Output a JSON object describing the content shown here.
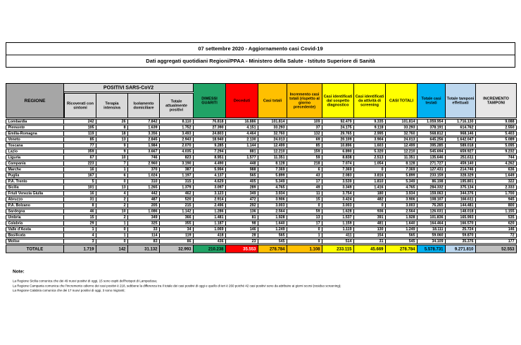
{
  "title": {
    "line1": "07 settembre 2020 - Aggiornamento casi Covid-19",
    "line2": "Dati aggregati quotidiani Regioni/PPAA - Ministero della Salute - Istituto Superiore di Sanità"
  },
  "colors": {
    "green": "#21A366",
    "red": "#FF0000",
    "orange": "#FFC000",
    "yellow": "#FFFF00",
    "cyan": "#00B0F0",
    "blue": "#BDD7EE",
    "grayDark": "#A6A6A6",
    "grayMid": "#BFBFBF",
    "grayLight": "#D9D9D9",
    "grayLighter": "#E7E6E6",
    "border": "#000000",
    "totals_deceduti_text": "#FFFFFF"
  },
  "table": {
    "region_header": "REGIONE",
    "group_header": "POSITIVI SARS-CoV2",
    "columns": [
      {
        "label": "Ricoverati con sintomi",
        "total_key": "grayMid"
      },
      {
        "label": "Terapia intensiva",
        "total_key": "grayMid"
      },
      {
        "label": "Isolamento domiciliare",
        "total_key": "grayMid"
      },
      {
        "label": "Totale attualmente positivi",
        "total_key": "grayMid"
      },
      {
        "label": "DIMESSI GUARITI",
        "total_key": "green"
      },
      {
        "label": "Deceduti",
        "total_key": "red",
        "total_text": "#FFFFFF"
      },
      {
        "label": "Casi totali",
        "total_key": "orange"
      },
      {
        "label": "Incremento casi totali (rispetto al giorno precedente)",
        "total_key": "orange"
      },
      {
        "label": "Casi identificati dal sospetto diagnostico",
        "total_key": "yellow"
      },
      {
        "label": "Casi identificati da attività di screening",
        "total_key": "yellow"
      },
      {
        "label": "CASI TOTALI",
        "total_key": "yellow"
      },
      {
        "label": "Totale casi testati",
        "total_key": "cyan"
      },
      {
        "label": "Totale tamponi effettuati",
        "total_key": "blue"
      },
      {
        "label": "INCREMENTO TAMPONI",
        "total_key": "grayMid"
      }
    ],
    "rows": [
      {
        "region": "Lombardia",
        "values": [
          "242",
          "26",
          "7.842",
          "8.110",
          "76.818",
          "16.886",
          "101.814",
          "109",
          "92.479",
          "9.335",
          "101.814",
          "1.059.954",
          "1.716.130",
          "9.088"
        ]
      },
      {
        "region": "Piemonte",
        "values": [
          "105",
          "8",
          "1.639",
          "1.752",
          "27.390",
          "4.151",
          "33.293",
          "37",
          "24.175",
          "9.118",
          "33.293",
          "378.191",
          "614.762",
          "2.550"
        ]
      },
      {
        "region": "Emilia-Romagna",
        "values": [
          "119",
          "18",
          "3.356",
          "3.493",
          "24.803",
          "4.464",
          "32.760",
          "132",
          "29.765",
          "2.995",
          "32.760",
          "568.812",
          "968.146",
          "5.403"
        ]
      },
      {
        "region": "Veneto",
        "values": [
          "85",
          "13",
          "2.845",
          "2.943",
          "18.940",
          "2.130",
          "24.013",
          "69",
          "20.109",
          "3.904",
          "24.013",
          "645.256",
          "1.642.047",
          "5.089"
        ]
      },
      {
        "region": "Toscana",
        "values": [
          "77",
          "9",
          "1.984",
          "2.070",
          "9.285",
          "1.144",
          "12.499",
          "85",
          "10.896",
          "1.603",
          "12.499",
          "395.285",
          "589.018",
          "5.095"
        ]
      },
      {
        "region": "Lazio",
        "values": [
          "359",
          "9",
          "3.667",
          "4.035",
          "7.294",
          "881",
          "12.210",
          "159",
          "6.890",
          "5.320",
          "12.210",
          "545.694",
          "659.927",
          "9.232"
        ]
      },
      {
        "region": "Liguria",
        "values": [
          "67",
          "10",
          "746",
          "823",
          "8.951",
          "1.577",
          "11.351",
          "59",
          "8.838",
          "2.513",
          "11.351",
          "135.646",
          "251.611",
          "744"
        ]
      },
      {
        "region": "Campania",
        "values": [
          "223",
          "7",
          "2.960",
          "3.190",
          "4.490",
          "448",
          "8.128",
          "218",
          "7.074",
          "1.054",
          "8.128",
          "271.727",
          "459.140",
          "4.262"
        ]
      },
      {
        "region": "Marche",
        "values": [
          "16",
          "1",
          "370",
          "387",
          "5.994",
          "988",
          "7.369",
          "6",
          "7.369",
          "0",
          "7.369",
          "127.431",
          "214.746",
          "636"
        ]
      },
      {
        "region": "Puglia",
        "values": [
          "167",
          "6",
          "1.024",
          "1.197",
          "4.137",
          "565",
          "5.899",
          "43",
          "2.083",
          "3.816",
          "5.899",
          "233.159",
          "328.329",
          "1.649"
        ]
      },
      {
        "region": "P.A. Trento",
        "values": [
          "5",
          "0",
          "310",
          "315",
          "4.629",
          "405",
          "5.349",
          "17",
          "3.539",
          "1.810",
          "5.349",
          "86.198",
          "195.801",
          "322"
        ]
      },
      {
        "region": "Sicilia",
        "values": [
          "101",
          "13",
          "1.265",
          "1.379",
          "3.097",
          "289",
          "4.765",
          "49",
          "3.349",
          "1.416",
          "4.765",
          "284.332",
          "375.134",
          "2.333"
        ]
      },
      {
        "region": "Friuli Venezia Giulia",
        "values": [
          "16",
          "4",
          "442",
          "462",
          "3.123",
          "349",
          "3.934",
          "11",
          "3.754",
          "180",
          "3.934",
          "159.063",
          "344.376",
          "1.700"
        ]
      },
      {
        "region": "Abruzzo",
        "values": [
          "31",
          "2",
          "487",
          "520",
          "2.914",
          "472",
          "3.906",
          "15",
          "3.424",
          "482",
          "3.906",
          "108.107",
          "166.611",
          "945"
        ]
      },
      {
        "region": "P.A. Bolzano",
        "values": [
          "8",
          "2",
          "205",
          "215",
          "2.496",
          "292",
          "3.003",
          "0",
          "3.003",
          "0",
          "3.003",
          "76.265",
          "144.481",
          "800"
        ]
      },
      {
        "region": "Sardegna",
        "values": [
          "46",
          "10",
          "1.086",
          "1.142",
          "1.286",
          "136",
          "2.564",
          "59",
          "1.628",
          "936",
          "2.564",
          "126.031",
          "148.018",
          "1.155"
        ]
      },
      {
        "region": "Umbria",
        "values": [
          "15",
          "2",
          "349",
          "366",
          "1.481",
          "81",
          "1.928",
          "13",
          "1.537",
          "391",
          "1.928",
          "101.836",
          "165.993",
          "535"
        ]
      },
      {
        "region": "Calabria",
        "values": [
          "29",
          "1",
          "325",
          "355",
          "1.187",
          "98",
          "1.640",
          "17",
          "1.159",
          "481",
          "1.640",
          "164.464",
          "166.570",
          "620"
        ]
      },
      {
        "region": "Valle d'Aosta",
        "values": [
          "1",
          "0",
          "33",
          "34",
          "1.069",
          "146",
          "1.249",
          "0",
          "1.119",
          "130",
          "1.249",
          "18.111",
          "25.724",
          "146"
        ]
      },
      {
        "region": "Basilicata",
        "values": [
          "4",
          "1",
          "114",
          "119",
          "418",
          "28",
          "565",
          "1",
          "411",
          "154",
          "565",
          "59.060",
          "59.870",
          "72"
        ]
      },
      {
        "region": "Molise",
        "values": [
          "3",
          "0",
          "83",
          "86",
          "436",
          "23",
          "545",
          "9",
          "514",
          "31",
          "545",
          "34.109",
          "35.376",
          "177"
        ]
      }
    ],
    "totals": {
      "label": "TOTALE",
      "values": [
        "1.719",
        "142",
        "31.132",
        "32.993",
        "210.238",
        "35.553",
        "278.784",
        "1.108",
        "233.115",
        "45.669",
        "278.784",
        "5.578.731",
        "9.271.810",
        "52.553"
      ]
    }
  },
  "notes": {
    "heading": "Note:",
    "items": [
      "La Regione Sicilia comunica che dei 49 nuovi positivi di oggi, 15 sono ospiti dell'hotspot di Lampedusa;",
      "La Regione Campania comunica che l'incremento odierno dei casi positivi è 218, sebbene la differenza tra il totale dei casi positivi di oggi e quello di ieri è 260 poiché 42 casi positivi sono da attribuire ai giorni scorsi (residuo screening);",
      "La Regione Calabria comunica che dei 17 nuovi positivi di oggi, 3 sono migranti;"
    ]
  }
}
